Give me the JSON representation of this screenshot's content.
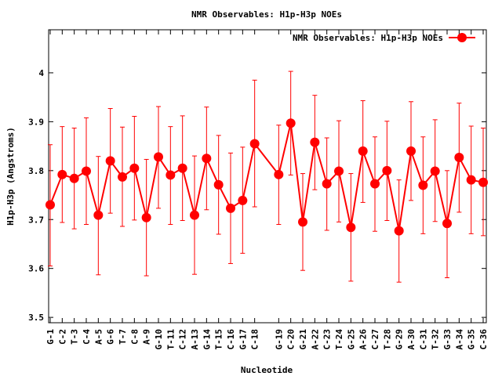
{
  "chart_data": {
    "type": "line",
    "title": "NMR Observables: H1p-H3p NOEs",
    "xlabel": "Nucleotide",
    "ylabel": "H1p-H3p (Angstroms)",
    "legend": {
      "label": "NMR Observables: H1p-H3p NOEs",
      "placement": "top-right"
    },
    "ylim": [
      3.489,
      4.088
    ],
    "xlim": [
      0.87,
      37.26
    ],
    "yticks": [
      3.5,
      3.6,
      3.7,
      3.8,
      3.9,
      4.0
    ],
    "ytick_labels": [
      "3.5",
      "3.6",
      "3.7",
      "3.8",
      "3.9",
      "4"
    ],
    "color": "#ff0000",
    "grid": false,
    "points": [
      {
        "label": "G-1",
        "x": 1,
        "y": 3.73,
        "ylow": 3.605,
        "yhigh": 3.853
      },
      {
        "label": "C-2",
        "x": 2,
        "y": 3.792,
        "ylow": 3.694,
        "yhigh": 3.89
      },
      {
        "label": "T-3",
        "x": 3,
        "y": 3.784,
        "ylow": 3.681,
        "yhigh": 3.887
      },
      {
        "label": "C-4",
        "x": 4,
        "y": 3.799,
        "ylow": 3.69,
        "yhigh": 3.908
      },
      {
        "label": "A-5",
        "x": 5,
        "y": 3.709,
        "ylow": 3.587,
        "yhigh": 3.829
      },
      {
        "label": "G-6",
        "x": 6,
        "y": 3.82,
        "ylow": 3.713,
        "yhigh": 3.927
      },
      {
        "label": "T-7",
        "x": 7,
        "y": 3.787,
        "ylow": 3.686,
        "yhigh": 3.889
      },
      {
        "label": "C-8",
        "x": 8,
        "y": 3.805,
        "ylow": 3.699,
        "yhigh": 3.911
      },
      {
        "label": "A-9",
        "x": 9,
        "y": 3.704,
        "ylow": 3.585,
        "yhigh": 3.823
      },
      {
        "label": "G-10",
        "x": 10,
        "y": 3.828,
        "ylow": 3.723,
        "yhigh": 3.931
      },
      {
        "label": "T-11",
        "x": 11,
        "y": 3.791,
        "ylow": 3.69,
        "yhigh": 3.89
      },
      {
        "label": "C-12",
        "x": 12,
        "y": 3.805,
        "ylow": 3.698,
        "yhigh": 3.912
      },
      {
        "label": "A-13",
        "x": 13,
        "y": 3.709,
        "ylow": 3.588,
        "yhigh": 3.83
      },
      {
        "label": "G-14",
        "x": 14,
        "y": 3.825,
        "ylow": 3.72,
        "yhigh": 3.93
      },
      {
        "label": "T-15",
        "x": 15,
        "y": 3.771,
        "ylow": 3.67,
        "yhigh": 3.872
      },
      {
        "label": "C-16",
        "x": 16,
        "y": 3.723,
        "ylow": 3.61,
        "yhigh": 3.836
      },
      {
        "label": "G-17",
        "x": 17,
        "y": 3.739,
        "ylow": 3.631,
        "yhigh": 3.848
      },
      {
        "label": "C-18",
        "x": 18,
        "y": 3.855,
        "ylow": 3.726,
        "yhigh": 3.985
      },
      {
        "label": "G-19",
        "x": 20,
        "y": 3.792,
        "ylow": 3.69,
        "yhigh": 3.893
      },
      {
        "label": "C-20",
        "x": 21,
        "y": 3.897,
        "ylow": 3.791,
        "yhigh": 4.003
      },
      {
        "label": "G-21",
        "x": 22,
        "y": 3.695,
        "ylow": 3.596,
        "yhigh": 3.794
      },
      {
        "label": "A-22",
        "x": 23,
        "y": 3.858,
        "ylow": 3.761,
        "yhigh": 3.954
      },
      {
        "label": "C-23",
        "x": 24,
        "y": 3.773,
        "ylow": 3.678,
        "yhigh": 3.867
      },
      {
        "label": "T-24",
        "x": 25,
        "y": 3.799,
        "ylow": 3.695,
        "yhigh": 3.902
      },
      {
        "label": "G-25",
        "x": 26,
        "y": 3.684,
        "ylow": 3.574,
        "yhigh": 3.794
      },
      {
        "label": "A-26",
        "x": 27,
        "y": 3.84,
        "ylow": 3.735,
        "yhigh": 3.943
      },
      {
        "label": "C-27",
        "x": 28,
        "y": 3.773,
        "ylow": 3.676,
        "yhigh": 3.869
      },
      {
        "label": "T-28",
        "x": 29,
        "y": 3.8,
        "ylow": 3.698,
        "yhigh": 3.901
      },
      {
        "label": "G-29",
        "x": 30,
        "y": 3.677,
        "ylow": 3.572,
        "yhigh": 3.781
      },
      {
        "label": "A-30",
        "x": 31,
        "y": 3.84,
        "ylow": 3.739,
        "yhigh": 3.941
      },
      {
        "label": "C-31",
        "x": 32,
        "y": 3.77,
        "ylow": 3.671,
        "yhigh": 3.869
      },
      {
        "label": "T-32",
        "x": 33,
        "y": 3.799,
        "ylow": 3.696,
        "yhigh": 3.904
      },
      {
        "label": "G-33",
        "x": 34,
        "y": 3.692,
        "ylow": 3.581,
        "yhigh": 3.8
      },
      {
        "label": "A-34",
        "x": 35,
        "y": 3.827,
        "ylow": 3.715,
        "yhigh": 3.938
      },
      {
        "label": "G-35",
        "x": 36,
        "y": 3.781,
        "ylow": 3.671,
        "yhigh": 3.891
      },
      {
        "label": "C-36",
        "x": 37,
        "y": 3.776,
        "ylow": 3.667,
        "yhigh": 3.887
      }
    ]
  }
}
